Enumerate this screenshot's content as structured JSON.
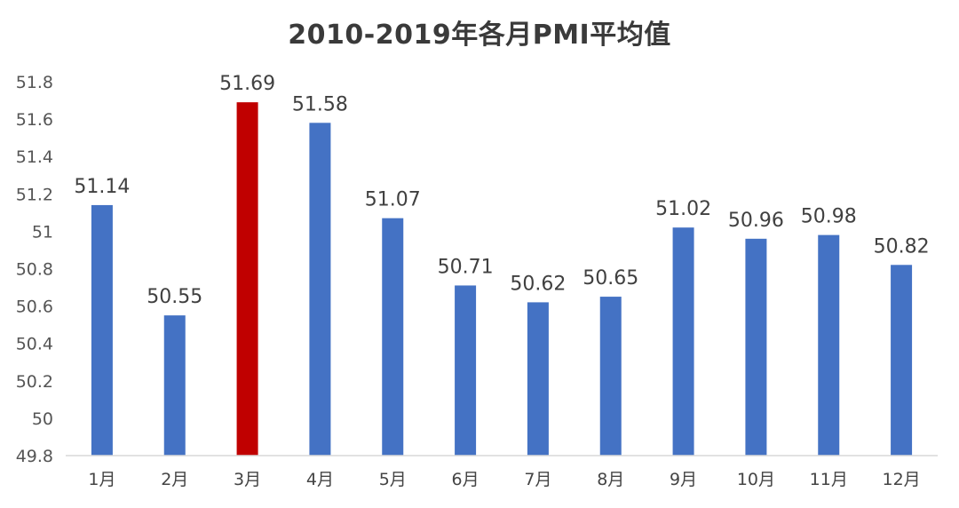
{
  "chart_data": {
    "type": "bar",
    "title": "2010-2019年各月PMI平均值",
    "categories": [
      "1月",
      "2月",
      "3月",
      "4月",
      "5月",
      "6月",
      "7月",
      "8月",
      "9月",
      "10月",
      "11月",
      "12月"
    ],
    "values": [
      51.14,
      50.55,
      51.69,
      51.58,
      51.07,
      50.71,
      50.62,
      50.65,
      51.02,
      50.96,
      50.98,
      50.82
    ],
    "data_labels": [
      "51.14",
      "50.55",
      "51.69",
      "51.58",
      "51.07",
      "50.71",
      "50.62",
      "50.65",
      "51.02",
      "50.96",
      "50.98",
      "50.82"
    ],
    "ylim": [
      49.8,
      51.8
    ],
    "yticks": [
      49.8,
      50,
      50.2,
      50.4,
      50.6,
      50.8,
      51,
      51.2,
      51.4,
      51.6,
      51.8
    ],
    "ytick_labels": [
      "49.8",
      "50",
      "50.2",
      "50.4",
      "50.6",
      "50.8",
      "51",
      "51.2",
      "51.4",
      "51.6",
      "51.8"
    ],
    "grid": false,
    "legend": "none",
    "colors": {
      "default": "#4472C4",
      "highlight": "#C00000"
    },
    "highlight_index": 2
  }
}
